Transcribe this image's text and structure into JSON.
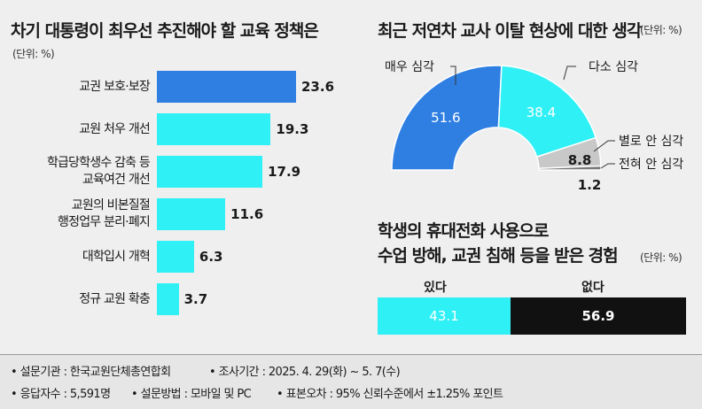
{
  "left": {
    "title": "차기 대통령이 최우선 추진해야 할 교육 정책은",
    "unit": "(단위: %)"
  },
  "right_top": {
    "title": "최근 저연차 교사 이탈 현상에 대한 생각",
    "unit": "(단위: %)"
  },
  "right_bottom": {
    "title_line1": "학생의 휴대전화 사용으로",
    "title_line2": "수업 방해, 교권 침해 등을 받은 경험",
    "unit": "(단위: %)",
    "label_yes": "있다",
    "label_no": "없다"
  },
  "footer": {
    "items": [
      "• 설문기관 : 한국교원단체총연합회",
      "• 조사기간 : 2025. 4. 29(화) ~ 5. 7(수)",
      "• 응답자수 : 5,591명",
      "• 설문방법 : 모바일 및 PC",
      "• 표본오차 : 95% 신뢰수준에서 ±1.25% 포인트"
    ]
  },
  "colors": {
    "highlight": "#2f7fe3",
    "bar": "#2ff0f5",
    "gray": "#c8c8c8",
    "dark": "#777777",
    "black": "#111111"
  },
  "chart_data": [
    {
      "type": "bar",
      "orientation": "horizontal",
      "title": "차기 대통령이 최우선 추진해야 할 교육 정책은",
      "unit": "(단위: %)",
      "categories": [
        "교권 보호·보장",
        "교원 처우 개선",
        "학급당학생수 감축 등\n교육여건 개선",
        "교원의 비본질절\n행정업무 분리·폐지",
        "대학입시 개혁",
        "정규 교원 확충"
      ],
      "category_lines": [
        [
          "교권 보호·보장"
        ],
        [
          "교원 처우 개선"
        ],
        [
          "학급당학생수 감축 등",
          "교육여건 개선"
        ],
        [
          "교원의 비본질절",
          "행정업무 분리·폐지"
        ],
        [
          "대학입시 개혁"
        ],
        [
          "정규 교원 확충"
        ]
      ],
      "values": [
        23.6,
        19.3,
        17.9,
        11.6,
        6.3,
        3.7
      ],
      "value_labels": [
        "23.6",
        "19.3",
        "17.9",
        "11.6",
        "6.3",
        "3.7"
      ]
    },
    {
      "type": "pie",
      "subtype": "half-donut",
      "title": "최근 저연차 교사 이탈 현상에 대한 생각",
      "unit": "(단위: %)",
      "slices": [
        {
          "label": "매우 심각",
          "value": 51.6,
          "value_label": "51.6"
        },
        {
          "label": "다소 심각",
          "value": 38.4,
          "value_label": "38.4"
        },
        {
          "label": "별로 안 심각",
          "value": 8.8,
          "value_label": "8.8"
        },
        {
          "label": "전혀 안 심각",
          "value": 1.2,
          "value_label": "1.2"
        }
      ]
    },
    {
      "type": "bar",
      "subtype": "stacked-100",
      "title": "학생의 휴대전화 사용으로 수업 방해, 교권 침해 등을 받은 경험",
      "unit": "(단위: %)",
      "categories": [
        "있다",
        "없다"
      ],
      "values": [
        43.1,
        56.9
      ],
      "value_labels": [
        "43.1",
        "56.9"
      ]
    }
  ]
}
